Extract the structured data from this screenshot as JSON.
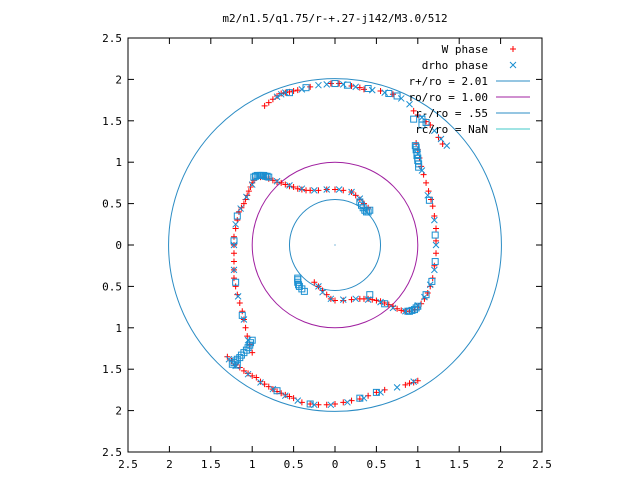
{
  "chart_data": {
    "type": "scatter",
    "title": "m2/n1.5/q1.75/r-+.27-j142/M3.0/512",
    "xlabel": "",
    "ylabel": "",
    "xlim": [
      -2.5,
      2.5
    ],
    "ylim": [
      -2.5,
      2.5
    ],
    "x_tick_values": [
      -2.5,
      -2,
      -1.5,
      -1,
      -0.5,
      0,
      0.5,
      1,
      1.5,
      2,
      2.5
    ],
    "x_tick_labels": [
      "2.5",
      "2",
      "1.5",
      "1",
      "0.5",
      "0",
      "0.5",
      "1",
      "1.5",
      "2",
      "2.5"
    ],
    "y_tick_values": [
      2.5,
      2,
      1.5,
      1,
      0.5,
      0,
      -0.5,
      -1,
      -1.5,
      -2,
      -2.5
    ],
    "y_tick_labels": [
      "2.5",
      "2",
      "1.5",
      "1",
      "0.5",
      "0",
      "0.5",
      "1",
      "1.5",
      "2",
      "2.5"
    ],
    "grid": false,
    "legend_position": "top-right",
    "series": [
      {
        "name": "W phase",
        "marker": "plus",
        "color": "#ff0000",
        "points": [
          [
            -0.45,
            1.87
          ],
          [
            -0.5,
            1.86
          ],
          [
            -0.55,
            1.85
          ],
          [
            -0.6,
            1.84
          ],
          [
            -0.65,
            1.83
          ],
          [
            -0.7,
            1.8
          ],
          [
            -0.75,
            1.76
          ],
          [
            -0.8,
            1.72
          ],
          [
            -0.85,
            1.68
          ],
          [
            -0.3,
            1.91
          ],
          [
            -0.05,
            1.95
          ],
          [
            0.05,
            1.95
          ],
          [
            0.2,
            1.92
          ],
          [
            0.3,
            1.9
          ],
          [
            0.35,
            1.88
          ],
          [
            0.55,
            1.86
          ],
          [
            0.7,
            1.82
          ],
          [
            0.95,
            1.62
          ],
          [
            1.0,
            1.57
          ],
          [
            1.1,
            1.49
          ],
          [
            1.15,
            1.45
          ],
          [
            1.25,
            1.3
          ],
          [
            1.3,
            1.22
          ],
          [
            0.98,
            1.23
          ],
          [
            1.0,
            1.15
          ],
          [
            1.02,
            1.05
          ],
          [
            1.04,
            0.95
          ],
          [
            1.07,
            0.85
          ],
          [
            1.1,
            0.75
          ],
          [
            1.13,
            0.65
          ],
          [
            1.16,
            0.55
          ],
          [
            1.18,
            0.47
          ],
          [
            1.2,
            0.35
          ],
          [
            1.22,
            0.2
          ],
          [
            1.22,
            0.05
          ],
          [
            1.22,
            -0.1
          ],
          [
            1.2,
            -0.25
          ],
          [
            1.18,
            -0.4
          ],
          [
            1.15,
            -0.5
          ],
          [
            1.12,
            -0.58
          ],
          [
            1.08,
            -0.65
          ],
          [
            1.04,
            -0.71
          ],
          [
            1.0,
            -0.75
          ],
          [
            0.96,
            -0.78
          ],
          [
            0.9,
            -0.8
          ],
          [
            0.85,
            -0.8
          ],
          [
            0.8,
            -0.79
          ],
          [
            0.75,
            -0.77
          ],
          [
            0.7,
            -0.74
          ],
          [
            0.65,
            -0.72
          ],
          [
            0.6,
            -0.7
          ],
          [
            0.55,
            -0.68
          ],
          [
            0.5,
            -0.67
          ],
          [
            0.45,
            -0.66
          ],
          [
            0.4,
            -0.65
          ],
          [
            0.35,
            -0.65
          ],
          [
            0.3,
            -0.65
          ],
          [
            0.2,
            -0.66
          ],
          [
            0.1,
            -0.67
          ],
          [
            0.0,
            -0.67
          ],
          [
            -0.05,
            -0.65
          ],
          [
            -0.1,
            -0.6
          ],
          [
            -0.15,
            -0.55
          ],
          [
            -0.2,
            -0.5
          ],
          [
            -0.25,
            -0.45
          ],
          [
            0.9,
            -1.67
          ],
          [
            0.95,
            -1.66
          ],
          [
            1.0,
            -1.64
          ],
          [
            0.85,
            -1.69
          ],
          [
            0.6,
            -1.75
          ],
          [
            0.5,
            -1.78
          ],
          [
            0.4,
            -1.82
          ],
          [
            0.3,
            -1.86
          ],
          [
            0.2,
            -1.88
          ],
          [
            0.1,
            -1.9
          ],
          [
            0.0,
            -1.92
          ],
          [
            -0.1,
            -1.93
          ],
          [
            -0.2,
            -1.93
          ],
          [
            -0.3,
            -1.92
          ],
          [
            -0.4,
            -1.9
          ],
          [
            -0.5,
            -1.85
          ],
          [
            -0.55,
            -1.83
          ],
          [
            -0.6,
            -1.81
          ],
          [
            -0.65,
            -1.79
          ],
          [
            -0.7,
            -1.77
          ],
          [
            -0.75,
            -1.74
          ],
          [
            -0.8,
            -1.71
          ],
          [
            -0.85,
            -1.68
          ],
          [
            -0.9,
            -1.65
          ],
          [
            -0.95,
            -1.6
          ],
          [
            -1.0,
            -1.58
          ],
          [
            -1.05,
            -1.55
          ],
          [
            -1.1,
            -1.52
          ],
          [
            -1.15,
            -1.48
          ],
          [
            -1.2,
            -1.45
          ],
          [
            -1.25,
            -1.4
          ],
          [
            -1.3,
            -1.35
          ],
          [
            -1.0,
            -1.3
          ],
          [
            -1.03,
            -1.2
          ],
          [
            -1.06,
            -1.1
          ],
          [
            -1.08,
            -1.0
          ],
          [
            -1.1,
            -0.9
          ],
          [
            -1.12,
            -0.8
          ],
          [
            -1.15,
            -0.7
          ],
          [
            -1.18,
            -0.6
          ],
          [
            -1.2,
            -0.5
          ],
          [
            -1.22,
            -0.4
          ],
          [
            -1.22,
            -0.3
          ],
          [
            -1.22,
            -0.2
          ],
          [
            -1.22,
            -0.1
          ],
          [
            -1.22,
            0.0
          ],
          [
            -1.22,
            0.1
          ],
          [
            -1.2,
            0.2
          ],
          [
            -1.18,
            0.3
          ],
          [
            -1.16,
            0.4
          ],
          [
            -1.13,
            0.45
          ],
          [
            -1.1,
            0.5
          ],
          [
            -1.08,
            0.55
          ],
          [
            -1.06,
            0.6
          ],
          [
            -1.04,
            0.65
          ],
          [
            -1.02,
            0.7
          ],
          [
            -1.0,
            0.75
          ],
          [
            -0.98,
            0.78
          ],
          [
            -0.9,
            0.82
          ],
          [
            -0.85,
            0.82
          ],
          [
            -0.8,
            0.8
          ],
          [
            -0.75,
            0.78
          ],
          [
            -0.7,
            0.76
          ],
          [
            -0.65,
            0.75
          ],
          [
            -0.6,
            0.73
          ],
          [
            -0.55,
            0.71
          ],
          [
            -0.5,
            0.7
          ],
          [
            -0.45,
            0.68
          ],
          [
            -0.4,
            0.67
          ],
          [
            -0.35,
            0.66
          ],
          [
            -0.3,
            0.66
          ],
          [
            -0.2,
            0.66
          ],
          [
            -0.1,
            0.67
          ],
          [
            0.0,
            0.67
          ],
          [
            0.1,
            0.66
          ],
          [
            0.2,
            0.64
          ],
          [
            0.25,
            0.6
          ],
          [
            0.3,
            0.55
          ],
          [
            0.35,
            0.5
          ],
          [
            0.4,
            0.45
          ]
        ]
      },
      {
        "name": "drho phase",
        "marker": "cross",
        "color": "#1a8fd1",
        "points": [
          [
            -0.6,
            1.84
          ],
          [
            -0.65,
            1.82
          ],
          [
            -0.7,
            1.79
          ],
          [
            -0.4,
            1.88
          ],
          [
            -0.2,
            1.93
          ],
          [
            -0.1,
            1.94
          ],
          [
            0.1,
            1.94
          ],
          [
            0.25,
            1.91
          ],
          [
            0.45,
            1.87
          ],
          [
            0.6,
            1.84
          ],
          [
            0.8,
            1.77
          ],
          [
            0.9,
            1.7
          ],
          [
            1.05,
            1.54
          ],
          [
            1.2,
            1.38
          ],
          [
            1.28,
            1.28
          ],
          [
            1.35,
            1.2
          ],
          [
            1.0,
            1.1
          ],
          [
            1.05,
            0.9
          ],
          [
            1.12,
            0.6
          ],
          [
            1.2,
            0.3
          ],
          [
            1.22,
            0.0
          ],
          [
            1.2,
            -0.3
          ],
          [
            1.15,
            -0.48
          ],
          [
            1.08,
            -0.63
          ],
          [
            1.0,
            -0.73
          ],
          [
            0.85,
            -0.8
          ],
          [
            0.7,
            -0.76
          ],
          [
            0.55,
            -0.69
          ],
          [
            0.4,
            -0.66
          ],
          [
            0.25,
            -0.65
          ],
          [
            0.1,
            -0.66
          ],
          [
            -0.05,
            -0.65
          ],
          [
            -0.15,
            -0.57
          ],
          [
            -0.2,
            -0.5
          ],
          [
            0.95,
            -1.65
          ],
          [
            0.75,
            -1.72
          ],
          [
            0.55,
            -1.78
          ],
          [
            0.35,
            -1.85
          ],
          [
            0.15,
            -1.9
          ],
          [
            -0.05,
            -1.93
          ],
          [
            -0.25,
            -1.93
          ],
          [
            -0.45,
            -1.88
          ],
          [
            -0.6,
            -1.82
          ],
          [
            -0.75,
            -1.74
          ],
          [
            -0.9,
            -1.66
          ],
          [
            -1.05,
            -1.56
          ],
          [
            -1.2,
            -1.46
          ],
          [
            -1.28,
            -1.38
          ],
          [
            -1.05,
            -1.15
          ],
          [
            -1.1,
            -0.9
          ],
          [
            -1.17,
            -0.62
          ],
          [
            -1.22,
            -0.3
          ],
          [
            -1.22,
            0.0
          ],
          [
            -1.2,
            0.25
          ],
          [
            -1.14,
            0.44
          ],
          [
            -1.07,
            0.58
          ],
          [
            -1.0,
            0.73
          ],
          [
            -0.85,
            0.83
          ],
          [
            -0.7,
            0.77
          ],
          [
            -0.55,
            0.72
          ],
          [
            -0.4,
            0.68
          ],
          [
            -0.25,
            0.66
          ],
          [
            -0.1,
            0.67
          ],
          [
            0.05,
            0.67
          ],
          [
            0.2,
            0.64
          ],
          [
            0.3,
            0.56
          ]
        ]
      },
      {
        "name": "",
        "marker": "square",
        "color": "#1a8fd1",
        "points": [
          [
            -0.55,
            1.84
          ],
          [
            -0.35,
            1.9
          ],
          [
            0.0,
            1.95
          ],
          [
            0.15,
            1.93
          ],
          [
            0.4,
            1.89
          ],
          [
            0.65,
            1.83
          ],
          [
            0.75,
            1.8
          ],
          [
            0.95,
            1.52
          ],
          [
            1.05,
            1.52
          ],
          [
            1.1,
            1.48
          ],
          [
            1.05,
            1.45
          ],
          [
            0.97,
            1.2
          ],
          [
            0.98,
            1.18
          ],
          [
            0.98,
            1.15
          ],
          [
            0.99,
            1.12
          ],
          [
            0.99,
            1.08
          ],
          [
            1.0,
            1.05
          ],
          [
            1.0,
            1.02
          ],
          [
            1.01,
            0.98
          ],
          [
            1.01,
            0.94
          ],
          [
            1.14,
            0.54
          ],
          [
            1.21,
            0.12
          ],
          [
            1.21,
            -0.2
          ],
          [
            1.17,
            -0.44
          ],
          [
            1.1,
            -0.6
          ],
          [
            1.0,
            -0.74
          ],
          [
            0.98,
            -0.76
          ],
          [
            0.96,
            -0.78
          ],
          [
            0.93,
            -0.79
          ],
          [
            0.9,
            -0.8
          ],
          [
            0.88,
            -0.8
          ],
          [
            -0.45,
            -0.4
          ],
          [
            -0.45,
            -0.42
          ],
          [
            -0.45,
            -0.45
          ],
          [
            -0.44,
            -0.48
          ],
          [
            -0.43,
            -0.5
          ],
          [
            -0.4,
            -0.53
          ],
          [
            -0.37,
            -0.56
          ],
          [
            0.42,
            -0.6
          ],
          [
            0.6,
            -0.71
          ],
          [
            -1.0,
            -1.15
          ],
          [
            -1.02,
            -1.18
          ],
          [
            -1.03,
            -1.21
          ],
          [
            -1.05,
            -1.24
          ],
          [
            -1.07,
            -1.27
          ],
          [
            -1.1,
            -1.3
          ],
          [
            -1.13,
            -1.33
          ],
          [
            -1.15,
            -1.36
          ],
          [
            -1.18,
            -1.38
          ],
          [
            -1.2,
            -1.4
          ],
          [
            -1.22,
            -1.42
          ],
          [
            -1.24,
            -1.44
          ],
          [
            -1.18,
            -1.45
          ],
          [
            -1.12,
            -0.85
          ],
          [
            -1.2,
            -0.45
          ],
          [
            -1.22,
            0.05
          ],
          [
            -1.18,
            0.35
          ],
          [
            -0.98,
            0.82
          ],
          [
            -0.96,
            0.83
          ],
          [
            -0.94,
            0.84
          ],
          [
            -0.92,
            0.84
          ],
          [
            -0.9,
            0.84
          ],
          [
            -0.88,
            0.84
          ],
          [
            -0.86,
            0.84
          ],
          [
            -0.84,
            0.83
          ],
          [
            -0.82,
            0.83
          ],
          [
            -0.8,
            0.82
          ],
          [
            0.3,
            0.52
          ],
          [
            0.32,
            0.48
          ],
          [
            0.34,
            0.45
          ],
          [
            0.36,
            0.42
          ],
          [
            0.38,
            0.4
          ],
          [
            0.4,
            0.4
          ],
          [
            0.42,
            0.42
          ],
          [
            0.5,
            -1.78
          ],
          [
            0.3,
            -1.85
          ],
          [
            -0.3,
            -1.92
          ],
          [
            -0.7,
            -1.76
          ]
        ]
      }
    ],
    "circles": [
      {
        "name": "r+/ro = 2.01",
        "radius": 2.01,
        "color": "#2b8cc4"
      },
      {
        "name": "ro/ro = 1.00",
        "radius": 1.0,
        "color": "#a020a0"
      },
      {
        "name": "r-/ro = .55",
        "radius": 0.55,
        "color": "#2b8cc4"
      },
      {
        "name": "rc/ro = NaN",
        "radius": null,
        "color": "#40c8c8"
      }
    ],
    "legend": [
      {
        "label": "W phase",
        "type": "point",
        "marker": "plus",
        "color": "#ff0000"
      },
      {
        "label": "drho phase",
        "type": "point",
        "marker": "cross",
        "color": "#1a8fd1"
      },
      {
        "label": "r+/ro = 2.01",
        "type": "line",
        "color": "#2b8cc4"
      },
      {
        "label": "ro/ro = 1.00",
        "type": "line",
        "color": "#a020a0"
      },
      {
        "label": "r-/ro = .55",
        "type": "line",
        "color": "#2b8cc4"
      },
      {
        "label": "rc/ro = NaN",
        "type": "line",
        "color": "#40c8c8"
      }
    ]
  }
}
